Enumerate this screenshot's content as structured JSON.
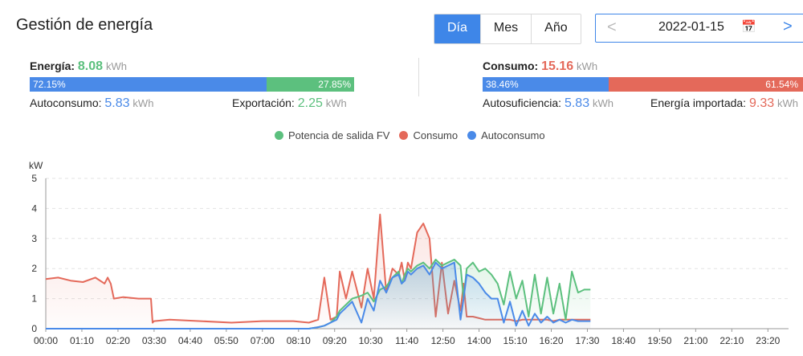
{
  "header": {
    "title": "Gestión de energía"
  },
  "period_tabs": [
    "Día",
    "Mes",
    "Año"
  ],
  "date_picker": {
    "prev": "<",
    "value": "2022-01-15",
    "next": ">",
    "calendar_icon": "calendar-icon"
  },
  "energy": {
    "label": "Energía:",
    "value": "8.08",
    "unit": "kWh",
    "bar_left": "72.15%",
    "bar_right": "27.85%",
    "left_fraction": 0.7215,
    "self_label": "Autoconsumo:",
    "self_value": "5.83",
    "self_unit": "kWh",
    "export_label": "Exportación:",
    "export_value": "2.25",
    "export_unit": "kWh"
  },
  "consumption": {
    "label": "Consumo:",
    "value": "15.16",
    "unit": "kWh",
    "bar_left": "38.46%",
    "bar_right": "61.54%",
    "left_fraction": 0.3846,
    "suff_label": "Autosuficiencia:",
    "suff_value": "5.83",
    "suff_unit": "kWh",
    "import_label": "Energía importada:",
    "import_value": "9.33",
    "import_unit": "kWh"
  },
  "colors": {
    "pv": "#5cc07e",
    "consumption": "#e4695a",
    "self": "#4a8ae8",
    "accent": "#3e86e8"
  },
  "chart_data": {
    "type": "line",
    "ylabel": "kW",
    "ylim": [
      0,
      5
    ],
    "yticks": [
      "0",
      "1",
      "2",
      "3",
      "4",
      "5"
    ],
    "xticks": [
      "00:00",
      "01:10",
      "02:20",
      "03:30",
      "04:40",
      "05:50",
      "07:00",
      "08:10",
      "09:20",
      "10:30",
      "11:40",
      "12:50",
      "14:00",
      "15:10",
      "16:20",
      "17:30",
      "18:40",
      "19:50",
      "21:00",
      "22:10",
      "23:20"
    ],
    "legend": [
      "Potencia de salida FV",
      "Consumo",
      "Autoconsumo"
    ],
    "x_hours": [
      0,
      0.4,
      0.8,
      1.2,
      1.6,
      1.9,
      2.0,
      2.1,
      2.2,
      2.5,
      3.0,
      3.4,
      3.45,
      3.5,
      4.0,
      5.0,
      6.0,
      7.0,
      8.0,
      8.5,
      8.8,
      9.0,
      9.2,
      9.4,
      9.5,
      9.7,
      9.9,
      10.2,
      10.4,
      10.6,
      10.8,
      11.0,
      11.2,
      11.4,
      11.5,
      11.6,
      11.7,
      11.8,
      12.0,
      12.2,
      12.4,
      12.6,
      12.8,
      13.0,
      13.2,
      13.4,
      13.5,
      13.6,
      13.8,
      14.0,
      14.2,
      14.4,
      14.6,
      14.8,
      15.0,
      15.2,
      15.4,
      15.6,
      15.8,
      16.0,
      16.2,
      16.4,
      16.6,
      16.8,
      17.0,
      17.2,
      17.4,
      17.6
    ],
    "series": [
      {
        "name": "Potencia de salida FV",
        "values": [
          0,
          0,
          0,
          0,
          0,
          0,
          0,
          0,
          0,
          0,
          0,
          0,
          0,
          0,
          0,
          0,
          0,
          0,
          0,
          0,
          0.05,
          0.1,
          0.2,
          0.4,
          0.6,
          0.8,
          1.0,
          1.1,
          1.2,
          0.9,
          1.3,
          1.4,
          1.7,
          1.9,
          1.5,
          1.8,
          2.0,
          1.9,
          2.1,
          2.2,
          2.0,
          2.3,
          2.1,
          2.2,
          2.3,
          2.1,
          1.0,
          2.0,
          2.2,
          1.9,
          2.0,
          1.8,
          1.5,
          0.8,
          1.9,
          1.0,
          1.6,
          0.4,
          1.8,
          0.5,
          1.7,
          0.5,
          1.5,
          0.3,
          1.9,
          1.2,
          1.3,
          1.3
        ]
      },
      {
        "name": "Consumo",
        "values": [
          1.65,
          1.7,
          1.6,
          1.55,
          1.7,
          1.5,
          1.7,
          1.5,
          1.0,
          1.05,
          1.0,
          1.0,
          0.2,
          0.25,
          0.3,
          0.25,
          0.2,
          0.25,
          0.25,
          0.2,
          0.3,
          1.7,
          0.3,
          0.4,
          1.9,
          1.0,
          1.9,
          0.7,
          2.0,
          1.0,
          3.8,
          1.2,
          2.0,
          1.8,
          2.2,
          1.6,
          2.2,
          2.0,
          3.2,
          3.5,
          3.0,
          0.4,
          2.2,
          0.5,
          1.6,
          0.6,
          1.5,
          0.4,
          0.4,
          0.35,
          0.3,
          0.3,
          0.3,
          0.3,
          0.3,
          0.25,
          0.3,
          0.3,
          0.3,
          0.3,
          0.3,
          0.25,
          0.3,
          0.3,
          0.3,
          0.3,
          0.3,
          0.3
        ]
      },
      {
        "name": "Autoconsumo",
        "values": [
          0,
          0,
          0,
          0,
          0,
          0,
          0,
          0,
          0,
          0,
          0,
          0,
          0,
          0,
          0,
          0,
          0,
          0,
          0,
          0,
          0.05,
          0.1,
          0.2,
          0.3,
          0.5,
          0.7,
          0.9,
          0.2,
          1.0,
          0.6,
          1.6,
          1.2,
          1.7,
          1.8,
          1.5,
          1.6,
          1.9,
          1.8,
          2.0,
          2.1,
          1.8,
          2.2,
          2.0,
          2.1,
          2.2,
          0.3,
          1.0,
          1.8,
          1.7,
          1.5,
          1.2,
          1.0,
          1.0,
          0.2,
          0.9,
          0.1,
          0.6,
          0.1,
          0.5,
          0.2,
          0.4,
          0.2,
          0.3,
          0.2,
          0.3,
          0.25,
          0.25,
          0.25
        ]
      }
    ]
  }
}
